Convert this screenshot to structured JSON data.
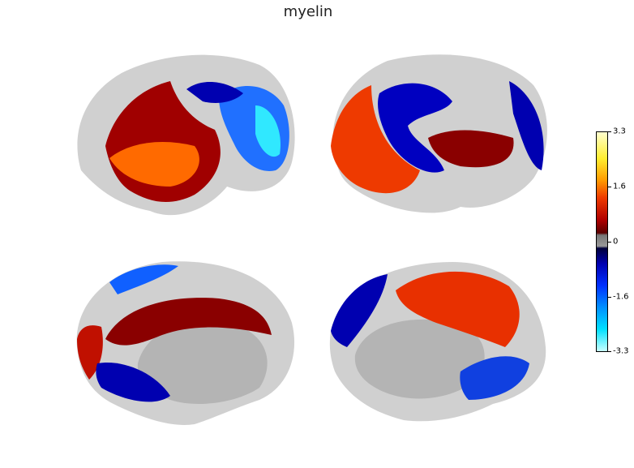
{
  "figure": {
    "title": "myelin",
    "colorbar": {
      "ticks": [
        "3.3",
        "1.6",
        "0",
        "-1.6",
        "-3.3"
      ],
      "range": [
        -3.3,
        3.3
      ]
    },
    "views": [
      "left-lateral",
      "right-lateral",
      "left-medial",
      "right-medial"
    ],
    "colors": {
      "positive_max": "#ffff80",
      "positive": "#ff4000",
      "zero": "#a0a0a0",
      "negative": "#0000c0",
      "negative_max": "#00ffff"
    }
  }
}
